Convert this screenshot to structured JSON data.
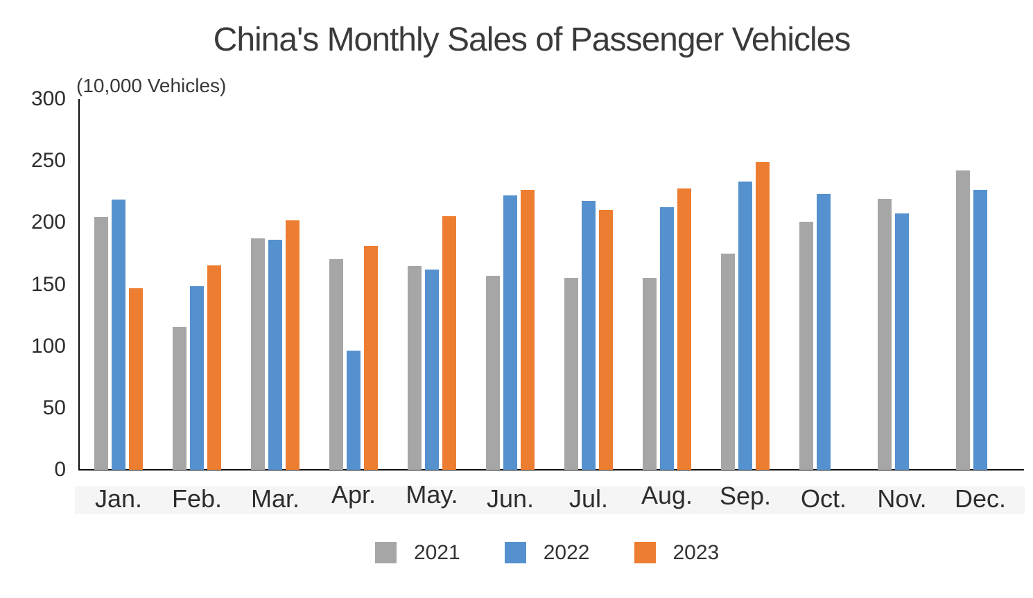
{
  "title": "China's Monthly Sales of Passenger Vehicles",
  "units_label": "(10,000 Vehicles)",
  "colors": {
    "series_2021": "#A6A6A6",
    "series_2022": "#5591CE",
    "series_2023": "#ED7D31",
    "axis": "#0D0D0D",
    "text": "#2D2D2D"
  },
  "chart_data": {
    "type": "bar",
    "title": "China's Monthly Sales of Passenger Vehicles",
    "unit": "(10,000 Vehicles)",
    "categories": [
      "Jan.",
      "Feb.",
      "Mar.",
      "Apr.",
      "May.",
      "Jun.",
      "Jul.",
      "Aug.",
      "Sep.",
      "Oct.",
      "Nov.",
      "Dec."
    ],
    "series": [
      {
        "name": "2021",
        "color": "#A6A6A6",
        "values": [
          204.5,
          115.6,
          187.4,
          170.4,
          164.6,
          156.9,
          155.1,
          155.2,
          175.1,
          200.7,
          219.2,
          242.2
        ]
      },
      {
        "name": "2022",
        "color": "#5591CE",
        "values": [
          218.6,
          148.7,
          186.4,
          96.5,
          162.3,
          222.2,
          217.4,
          212.5,
          233.2,
          223.1,
          207.5,
          226.3
        ]
      },
      {
        "name": "2023",
        "color": "#ED7D31",
        "values": [
          146.9,
          165.3,
          201.7,
          181.1,
          205.1,
          226.8,
          210.0,
          227.5,
          248.8,
          null,
          null,
          null
        ]
      }
    ],
    "xlabel": "",
    "ylabel": "(10,000 Vehicles)",
    "ylim": [
      0,
      300
    ],
    "yticks": [
      0,
      50,
      100,
      150,
      200,
      250,
      300
    ],
    "grid": false,
    "legend_position": "bottom",
    "legend_entries": [
      "2021",
      "2022",
      "2023"
    ]
  }
}
